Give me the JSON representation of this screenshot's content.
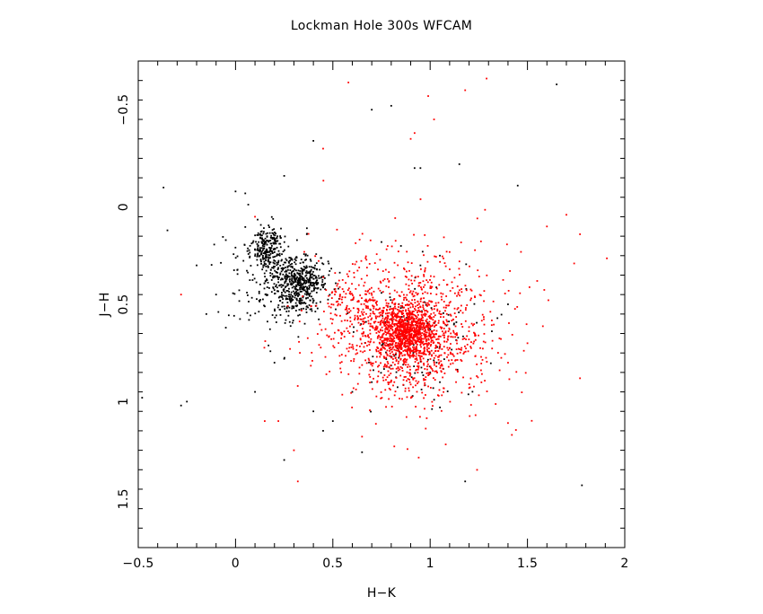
{
  "chart_data": {
    "type": "scatter",
    "title": "Lockman Hole 300s WFCAM",
    "xlabel": "H−K",
    "ylabel": "J−H",
    "xlim": [
      -0.5,
      2.0
    ],
    "ylim": [
      1.75,
      -0.75
    ],
    "y_axis_inverted": true,
    "x_ticks": [
      -0.5,
      0,
      0.5,
      1,
      1.5,
      2
    ],
    "x_tick_labels": [
      "−0.5",
      "0",
      "0.5",
      "1",
      "1.5",
      "2"
    ],
    "y_ticks": [
      -0.5,
      0,
      0.5,
      1,
      1.5
    ],
    "y_tick_labels": [
      "−0.5",
      "0",
      "0.5",
      "1",
      "1.5"
    ],
    "grid": false,
    "legend": "none",
    "series": [
      {
        "color": "#000000",
        "clusters": [
          {
            "center": [
              0.16,
              0.22
            ],
            "spread": [
              0.04,
              0.06
            ],
            "count": 240
          },
          {
            "center": [
              0.33,
              0.4
            ],
            "spread": [
              0.07,
              0.07
            ],
            "count": 520
          },
          {
            "center": [
              0.2,
              0.38
            ],
            "spread": [
              0.14,
              0.14
            ],
            "count": 160
          },
          {
            "center": [
              0.9,
              0.66
            ],
            "spread": [
              0.16,
              0.16
            ],
            "count": 130
          }
        ],
        "points": [
          [
            -0.37,
            -0.1
          ],
          [
            -0.35,
            0.12
          ],
          [
            -0.48,
            0.98
          ],
          [
            -0.28,
            1.02
          ],
          [
            -0.25,
            1.0
          ],
          [
            -0.05,
            0.17
          ],
          [
            0.0,
            -0.08
          ],
          [
            0.05,
            -0.07
          ],
          [
            0.25,
            -0.16
          ],
          [
            0.4,
            -0.34
          ],
          [
            0.7,
            -0.5
          ],
          [
            0.8,
            -0.52
          ],
          [
            0.92,
            -0.2
          ],
          [
            0.95,
            -0.2
          ],
          [
            1.15,
            -0.22
          ],
          [
            1.45,
            -0.11
          ],
          [
            1.65,
            -0.63
          ],
          [
            1.78,
            1.43
          ],
          [
            1.18,
            1.41
          ],
          [
            0.25,
            1.3
          ],
          [
            0.65,
            1.26
          ],
          [
            0.5,
            1.1
          ],
          [
            0.45,
            1.15
          ],
          [
            0.4,
            1.05
          ],
          [
            0.2,
            0.8
          ],
          [
            0.25,
            0.78
          ],
          [
            0.7,
            0.9
          ],
          [
            1.0,
            0.85
          ],
          [
            1.05,
            0.9
          ],
          [
            0.95,
            0.3
          ],
          [
            1.05,
            0.25
          ],
          [
            0.85,
            0.2
          ],
          [
            0.75,
            0.18
          ],
          [
            -0.2,
            0.3
          ],
          [
            -0.15,
            0.55
          ],
          [
            -0.1,
            0.45
          ],
          [
            -0.05,
            0.62
          ],
          [
            0.1,
            0.95
          ],
          [
            0.6,
            0.95
          ],
          [
            1.4,
            0.5
          ]
        ]
      },
      {
        "color": "#ff0000",
        "clusters": [
          {
            "center": [
              0.88,
              0.64
            ],
            "spread": [
              0.07,
              0.06
            ],
            "count": 700
          },
          {
            "center": [
              0.9,
              0.66
            ],
            "spread": [
              0.16,
              0.15
            ],
            "count": 900
          },
          {
            "center": [
              0.9,
              0.6
            ],
            "spread": [
              0.27,
              0.25
            ],
            "count": 420
          },
          {
            "center": [
              0.6,
              0.52
            ],
            "spread": [
              0.08,
              0.08
            ],
            "count": 110
          }
        ],
        "points": [
          [
            0.58,
            -0.64
          ],
          [
            1.29,
            -0.66
          ],
          [
            1.18,
            -0.6
          ],
          [
            0.99,
            -0.57
          ],
          [
            0.9,
            -0.35
          ],
          [
            0.92,
            -0.38
          ],
          [
            1.02,
            -0.45
          ],
          [
            1.7,
            0.04
          ],
          [
            1.77,
            0.14
          ],
          [
            1.74,
            0.29
          ],
          [
            1.77,
            0.88
          ],
          [
            1.4,
            1.11
          ],
          [
            0.32,
            1.41
          ],
          [
            0.22,
            1.1
          ],
          [
            0.3,
            1.25
          ],
          [
            0.65,
            1.18
          ],
          [
            1.08,
            1.22
          ],
          [
            -0.28,
            0.45
          ],
          [
            0.1,
            0.05
          ],
          [
            0.45,
            -0.3
          ],
          [
            1.55,
            0.38
          ],
          [
            1.5,
            0.7
          ],
          [
            0.15,
            1.1
          ],
          [
            1.6,
            0.1
          ]
        ]
      }
    ]
  }
}
